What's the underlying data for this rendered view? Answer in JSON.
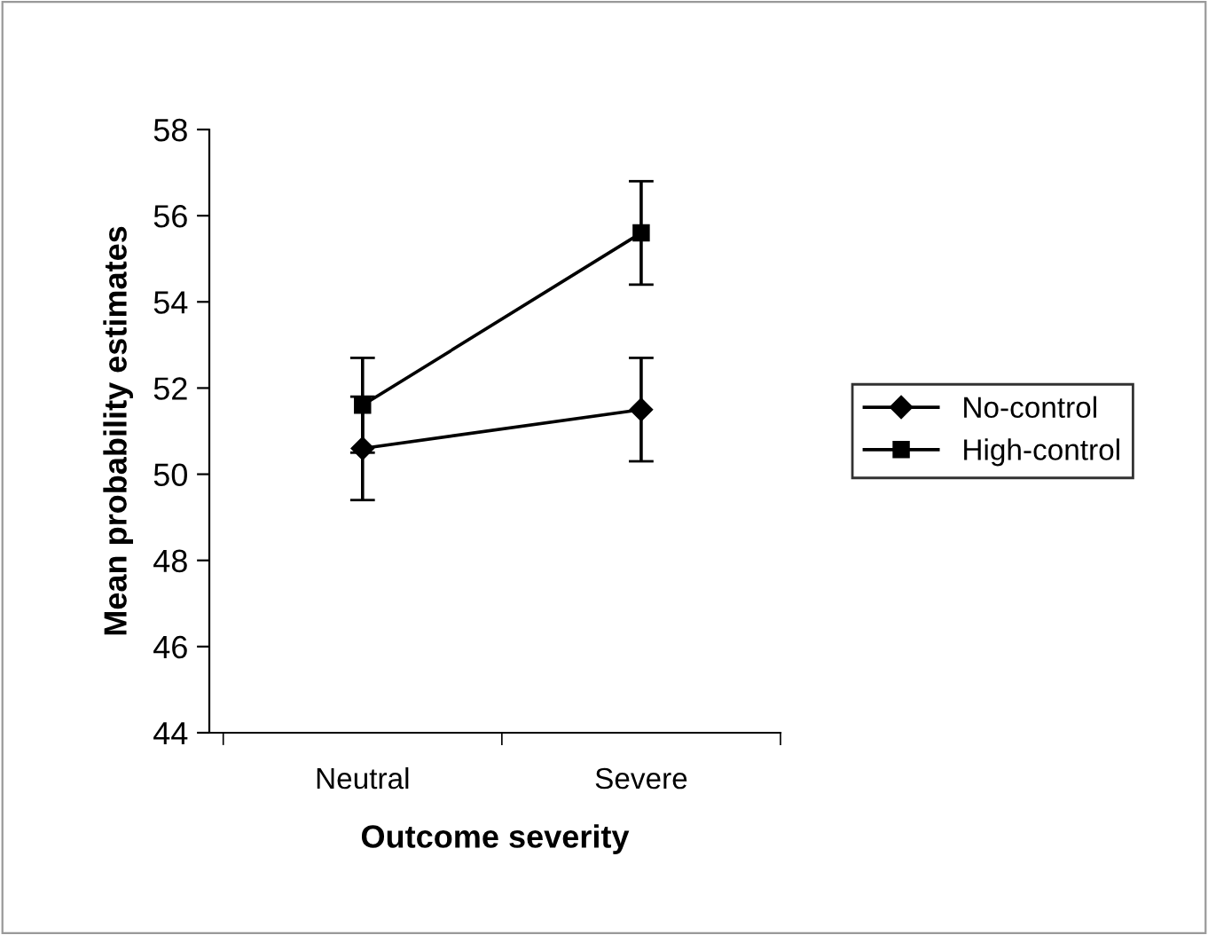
{
  "chart_data": {
    "type": "line",
    "xlabel": "Outcome severity",
    "ylabel": "Mean probability estimates",
    "categories": [
      "Neutral",
      "Severe"
    ],
    "series": [
      {
        "name": "No-control",
        "color": "#000000",
        "marker": "diamond",
        "values": [
          50.6,
          51.5
        ],
        "errors": [
          1.2,
          1.2
        ]
      },
      {
        "name": "High-control",
        "color": "#000000",
        "marker": "square",
        "values": [
          51.6,
          55.6
        ],
        "errors": [
          1.1,
          1.2
        ]
      }
    ],
    "ylim": [
      44,
      58
    ],
    "yticks": [
      44,
      46,
      48,
      50,
      52,
      54,
      56,
      58
    ],
    "grid": false,
    "legend": "right",
    "line_style": "solid"
  }
}
